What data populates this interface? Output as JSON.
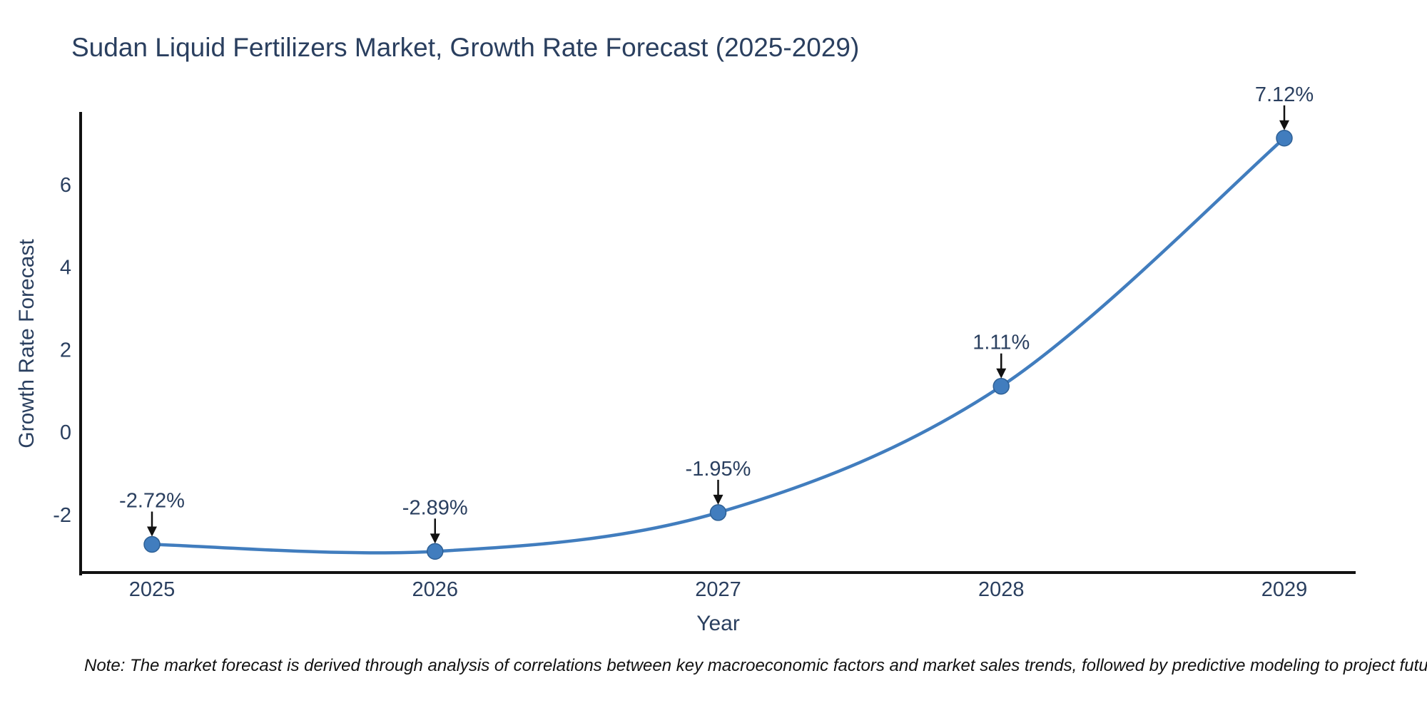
{
  "chart_data": {
    "type": "line",
    "title": "Sudan Liquid Fertilizers Market, Growth Rate Forecast (2025-2029)",
    "xlabel": "Year",
    "ylabel": "Growth Rate Forecast",
    "x": [
      2025,
      2026,
      2027,
      2028,
      2029
    ],
    "values": [
      -2.72,
      -2.89,
      -1.95,
      1.11,
      7.12
    ],
    "point_labels": [
      "-2.72%",
      "-2.89%",
      "-1.95%",
      "1.11%",
      "7.12%"
    ],
    "yticks": [
      -2,
      0,
      2,
      4,
      6
    ],
    "ylim": [
      -3.4,
      7.8
    ],
    "line_shape": "spline",
    "grid": false,
    "legend_position": "none",
    "colors": {
      "line": "#417dbe",
      "marker": "#417dbe",
      "marker_edge": "#2e6095",
      "axis_line": "#111111",
      "annotation_arrow": "#111111",
      "text": "#2a3f5f"
    }
  },
  "footnote": {
    "text": "Note: The market forecast is derived through analysis of correlations between key macroeconomic factors and market sales trends, followed by predictive modeling to project future sales"
  }
}
